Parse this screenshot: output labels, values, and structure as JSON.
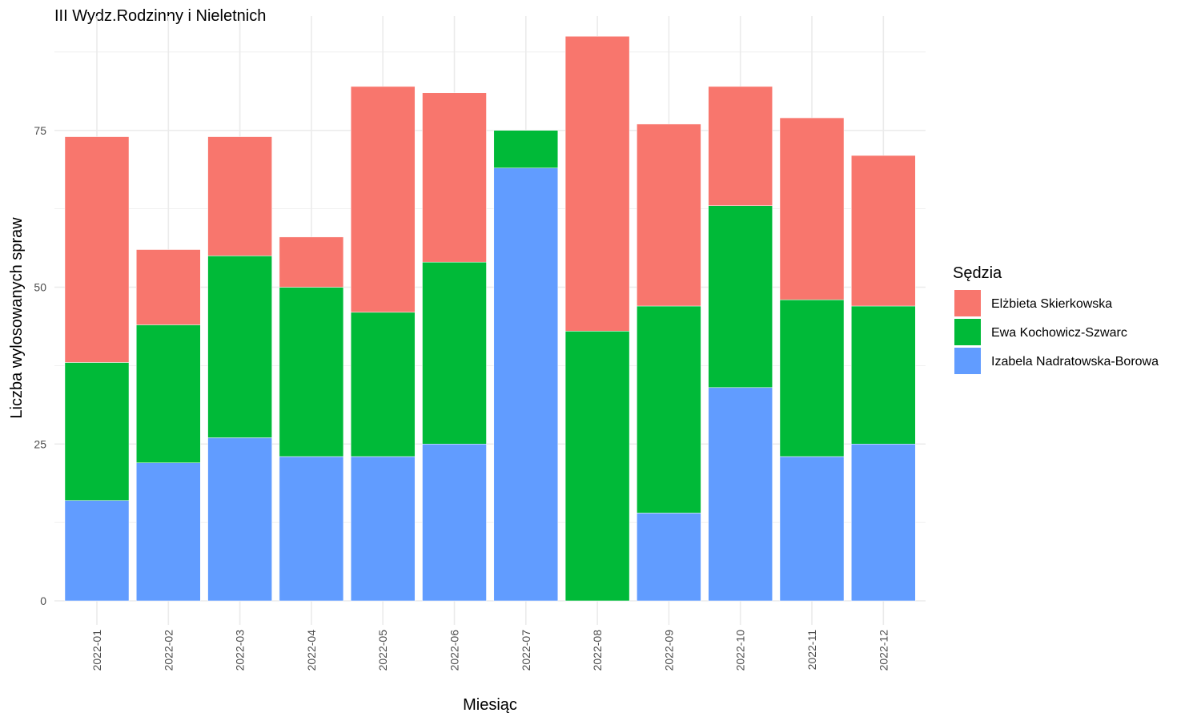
{
  "chart_data": {
    "type": "bar",
    "stacked": true,
    "title": "III Wydz.Rodzinny i Nieletnich",
    "xlabel": "Miesiąc",
    "ylabel": "Liczba wylosowanych spraw",
    "ylim": [
      0,
      90
    ],
    "y_ticks": [
      "0",
      "25",
      "50",
      "75"
    ],
    "grid": true,
    "legend_title": "Sędzia",
    "legend_position": "right",
    "categories": [
      "2022-01",
      "2022-02",
      "2022-03",
      "2022-04",
      "2022-05",
      "2022-06",
      "2022-07",
      "2022-08",
      "2022-09",
      "2022-10",
      "2022-11",
      "2022-12"
    ],
    "series": [
      {
        "name": "Izabela Nadratowska-Borowa",
        "color": "#619cff",
        "values": [
          16,
          22,
          26,
          23,
          23,
          25,
          69,
          0,
          14,
          34,
          23,
          25
        ]
      },
      {
        "name": "Ewa Kochowicz-Szwarc",
        "color": "#00ba38",
        "values": [
          22,
          22,
          29,
          27,
          23,
          29,
          6,
          43,
          33,
          29,
          25,
          22
        ]
      },
      {
        "name": "Elżbieta Skierkowska",
        "color": "#f8766d",
        "values": [
          36,
          12,
          19,
          8,
          36,
          27,
          0,
          47,
          29,
          19,
          29,
          24
        ]
      }
    ],
    "legend_order": [
      "Elżbieta Skierkowska",
      "Ewa Kochowicz-Szwarc",
      "Izabela Nadratowska-Borowa"
    ]
  }
}
